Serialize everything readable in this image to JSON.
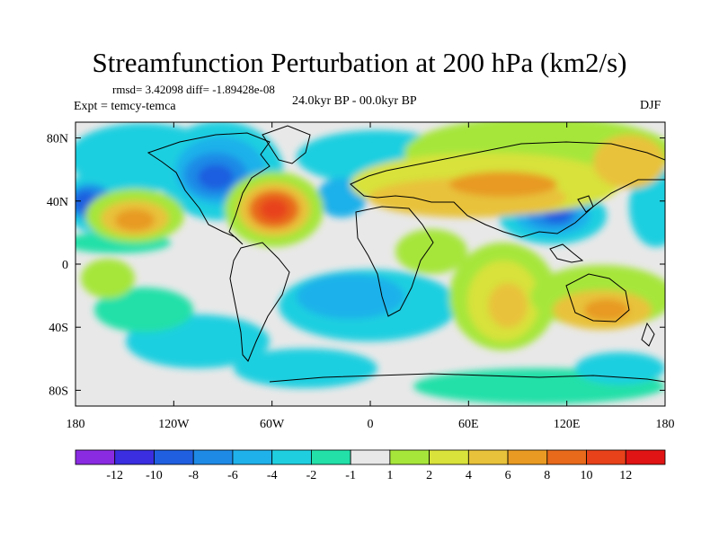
{
  "title": "Streamfunction Perturbation at 200 hPa (km2/s)",
  "stats": "rmsd= 3.42098 diff= -1.89428e-08",
  "experiment": "Expt = temcy-temca",
  "period": "24.0kyr BP - 00.0kyr BP",
  "season": "DJF",
  "chart_data": {
    "type": "heatmap",
    "projection": "cylindrical equidistant",
    "variable": "200 hPa streamfunction perturbation",
    "units": "km2/s",
    "lon_range": [
      -180,
      180
    ],
    "lat_range": [
      -90,
      90
    ],
    "x_ticks": [
      "180",
      "120W",
      "60W",
      "0",
      "60E",
      "120E",
      "180"
    ],
    "y_ticks": [
      "80N",
      "40N",
      "0",
      "40S",
      "80S"
    ],
    "colorbar": {
      "labels": [
        "-12",
        "-10",
        "-8",
        "-6",
        "-4",
        "-2",
        "-1",
        "1",
        "2",
        "4",
        "6",
        "8",
        "10",
        "12"
      ],
      "colors": [
        "#8a2be2",
        "#3a2ee0",
        "#1f5fe0",
        "#1e8ae6",
        "#1fb1ea",
        "#1fcfe0",
        "#22e0a8",
        "#e8e8e8",
        "#a6e63a",
        "#d8e23a",
        "#e8c23a",
        "#e89a22",
        "#e86a1a",
        "#e8421a",
        "#e01414"
      ]
    },
    "features": [
      {
        "name": "negative center NE Pacific",
        "lon": -95,
        "lat": 55,
        "value": -8
      },
      {
        "name": "positive center Gulf Stream",
        "lon": -63,
        "lat": 37,
        "value": 10
      },
      {
        "name": "negative center West Pacific",
        "lon": 118,
        "lat": 30,
        "value": -10
      },
      {
        "name": "negative center Central Pacific",
        "lon": -170,
        "lat": 40,
        "value": -10
      },
      {
        "name": "positive center N Pacific",
        "lon": -130,
        "lat": 30,
        "value": 6
      },
      {
        "name": "positive center Indian Ocean",
        "lon": 90,
        "lat": -15,
        "value": 6
      },
      {
        "name": "positive center Australia",
        "lon": 145,
        "lat": -30,
        "value": 6
      },
      {
        "name": "positive band Eurasia",
        "lon": 80,
        "lat": 55,
        "value": 5
      }
    ]
  }
}
